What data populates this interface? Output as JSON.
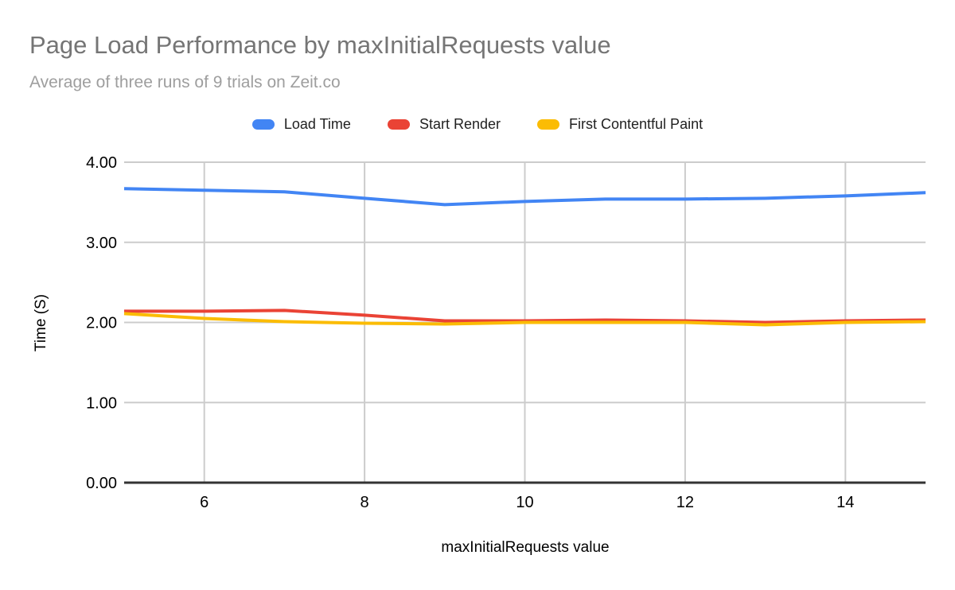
{
  "colors": {
    "title_text": "#757575",
    "subtitle_text": "#9e9e9e",
    "legend_text": "#212121",
    "tick_label": "#000000",
    "gridline": "#cccccc",
    "baseline": "#333333",
    "background": "#ffffff"
  },
  "chart_data": {
    "type": "line",
    "title": "Page Load Performance by maxInitialRequests value",
    "subtitle": "Average of three runs of 9 trials on Zeit.co",
    "xlabel": "maxInitialRequests value",
    "ylabel": "Time (S)",
    "xlim": [
      5,
      15
    ],
    "ylim": [
      0,
      4
    ],
    "grid": true,
    "legend_position": "top",
    "x": [
      5,
      6,
      7,
      8,
      9,
      10,
      11,
      12,
      13,
      14,
      15
    ],
    "x_ticks": [
      6,
      8,
      10,
      12,
      14
    ],
    "y_ticks": [
      0,
      1,
      2,
      3,
      4
    ],
    "y_tick_labels": [
      "0.00",
      "1.00",
      "2.00",
      "3.00",
      "4.00"
    ],
    "series": [
      {
        "name": "Load Time",
        "color": "#4285F4",
        "values": [
          3.67,
          3.65,
          3.63,
          3.55,
          3.47,
          3.51,
          3.54,
          3.54,
          3.55,
          3.58,
          3.62
        ]
      },
      {
        "name": "Start Render",
        "color": "#EA4335",
        "values": [
          2.14,
          2.14,
          2.15,
          2.09,
          2.02,
          2.02,
          2.03,
          2.02,
          2.0,
          2.02,
          2.03
        ]
      },
      {
        "name": "First Contentful Paint",
        "color": "#FBBC04",
        "values": [
          2.11,
          2.05,
          2.01,
          1.99,
          1.98,
          2.0,
          2.0,
          2.0,
          1.97,
          2.0,
          2.01
        ]
      }
    ]
  }
}
